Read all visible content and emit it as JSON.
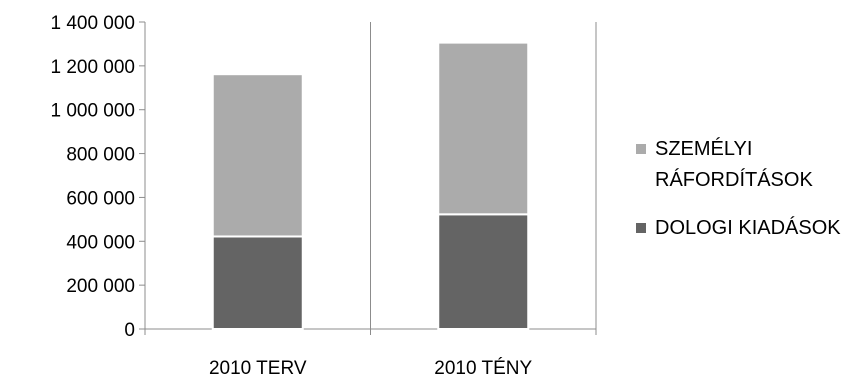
{
  "chart_data": {
    "type": "bar",
    "stacked": true,
    "categories": [
      "2010 TERV",
      "2010 TÉNY"
    ],
    "series": [
      {
        "name": "DOLOGI KIADÁSOK",
        "color": "#646464",
        "values": [
          422000,
          523000
        ]
      },
      {
        "name": "SZEMÉLYI RÁFORDÍTÁSOK",
        "color": "#ababab",
        "values": [
          740000,
          783000
        ]
      }
    ],
    "ylim": [
      0,
      1400000
    ],
    "yticks": [
      0,
      200000,
      400000,
      600000,
      800000,
      1000000,
      1200000,
      1400000
    ],
    "ytick_labels": [
      "0",
      "200 000",
      "400 000",
      "600 000",
      "800 000",
      "1 000 000",
      "1 200 000",
      "1 400 000"
    ],
    "grid": "vertical category separators",
    "legend_position": "right",
    "legend_order": [
      "SZEMÉLYI RÁFORDÍTÁSOK",
      "DOLOGI KIADÁSOK"
    ],
    "title": "",
    "xlabel": "",
    "ylabel": ""
  }
}
